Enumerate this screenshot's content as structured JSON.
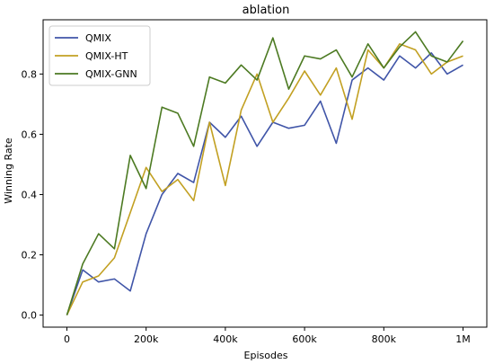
{
  "chart_data": {
    "type": "line",
    "title": "ablation",
    "xlabel": "Episodes",
    "ylabel": "Winning Rate",
    "xlim": [
      -60000,
      1060000
    ],
    "ylim": [
      -0.04,
      0.98
    ],
    "xticks": [
      0,
      200000,
      400000,
      600000,
      800000,
      1000000
    ],
    "xtick_labels": [
      "0",
      "200k",
      "400k",
      "600k",
      "800k",
      "1M"
    ],
    "yticks": [
      0.0,
      0.2,
      0.4,
      0.6,
      0.8
    ],
    "ytick_labels": [
      "0.0",
      "0.2",
      "0.4",
      "0.6",
      "0.8"
    ],
    "grid": false,
    "legend_position": "top-left",
    "x": [
      0,
      40000,
      80000,
      120000,
      160000,
      200000,
      240000,
      280000,
      320000,
      360000,
      400000,
      440000,
      480000,
      520000,
      560000,
      600000,
      640000,
      680000,
      720000,
      760000,
      800000,
      840000,
      880000,
      920000,
      960000,
      1000000
    ],
    "series": [
      {
        "name": "QMIX",
        "color": "#4055a8",
        "values": [
          0.0,
          0.15,
          0.11,
          0.12,
          0.08,
          0.27,
          0.4,
          0.47,
          0.44,
          0.64,
          0.59,
          0.66,
          0.56,
          0.64,
          0.62,
          0.63,
          0.71,
          0.57,
          0.78,
          0.82,
          0.78,
          0.86,
          0.82,
          0.87,
          0.8,
          0.83
        ]
      },
      {
        "name": "QMIX-HT",
        "color": "#c2a022",
        "values": [
          0.0,
          0.11,
          0.13,
          0.19,
          0.34,
          0.49,
          0.41,
          0.45,
          0.38,
          0.64,
          0.43,
          0.68,
          0.8,
          0.64,
          0.72,
          0.81,
          0.73,
          0.82,
          0.65,
          0.88,
          0.82,
          0.9,
          0.88,
          0.8,
          0.84,
          0.86
        ]
      },
      {
        "name": "QMIX-GNN",
        "color": "#4c7a22",
        "values": [
          0.0,
          0.17,
          0.27,
          0.22,
          0.53,
          0.42,
          0.69,
          0.67,
          0.56,
          0.79,
          0.77,
          0.83,
          0.78,
          0.92,
          0.75,
          0.86,
          0.85,
          0.88,
          0.79,
          0.9,
          0.82,
          0.89,
          0.94,
          0.86,
          0.84,
          0.91
        ]
      }
    ]
  }
}
